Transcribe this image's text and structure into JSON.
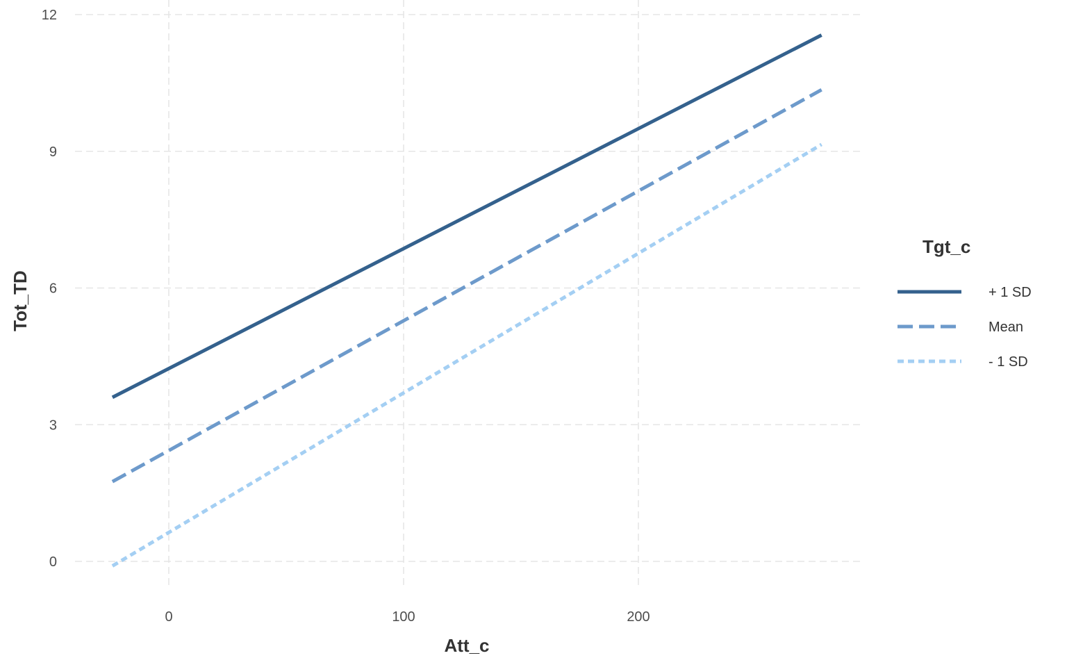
{
  "chart_data": {
    "type": "line",
    "xlabel": "Att_c",
    "ylabel": "Tot_TD",
    "xlim": [
      -40,
      295
    ],
    "ylim": [
      -0.6,
      12.1
    ],
    "x_ticks": [
      0,
      100,
      200
    ],
    "y_ticks": [
      0,
      3,
      6,
      9,
      12
    ],
    "grid": true,
    "legend": {
      "title": "Tgt_c",
      "position": "right"
    },
    "series": [
      {
        "name": "+ 1 SD",
        "color": "#34618d",
        "style": "solid",
        "x": [
          -24,
          278
        ],
        "y": [
          3.6,
          11.55
        ]
      },
      {
        "name": "Mean",
        "color": "#6d9acb",
        "style": "dashed",
        "x": [
          -24,
          278
        ],
        "y": [
          1.75,
          10.35
        ]
      },
      {
        "name": "- 1 SD",
        "color": "#a4cff3",
        "style": "dotted",
        "x": [
          -24,
          278
        ],
        "y": [
          -0.1,
          9.15
        ]
      }
    ]
  }
}
